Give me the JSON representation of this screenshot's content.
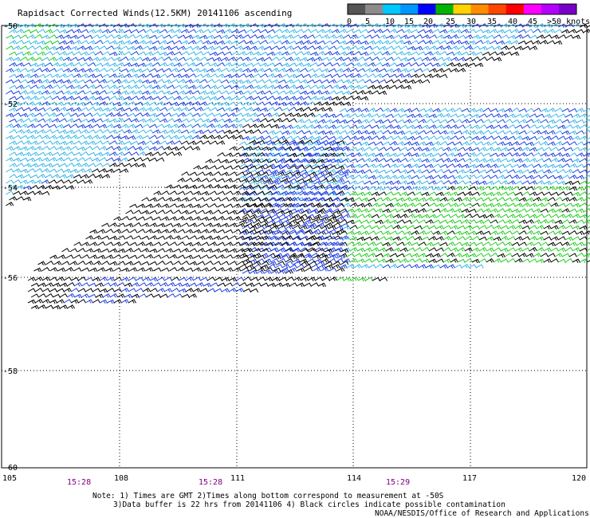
{
  "title": "Rapidsact Corrected Winds(12.5KM) 20141106 ascending",
  "legend": {
    "labels": [
      "0",
      "5",
      "10",
      "15",
      "20",
      "25",
      "30",
      "35",
      "40",
      "45",
      ">50 knots"
    ],
    "colors": [
      "#555555",
      "#8c8c8c",
      "#00c8ff",
      "#0096ff",
      "#0000ff",
      "#00b400",
      "#ffd200",
      "#ff8c00",
      "#ff4600",
      "#ff0000",
      "#ff00ff",
      "#b400ff",
      "#7800c8"
    ]
  },
  "axes": {
    "x_ticks": [
      "105",
      "108",
      "111",
      "114",
      "117",
      "120"
    ],
    "y_ticks": [
      "-50",
      "-52",
      "-54",
      "-56",
      "-58",
      "-60"
    ],
    "times": [
      "15:28",
      "15:28",
      "15:29"
    ]
  },
  "notes": {
    "line1": "Note: 1) Times are GMT 2)Times along bottom correspond to measurement at -50S",
    "line2": "3)Data buffer is 22 hrs from 20141106 4) Black circles indicate possible contamination",
    "credit": "NOAA/NESDIS/Office of Research and Applications"
  },
  "wind_colors": {
    "black": "#000000",
    "light_blue": "#39b7e6",
    "dark_blue": "#1f3fe0",
    "green": "#22cc22"
  }
}
